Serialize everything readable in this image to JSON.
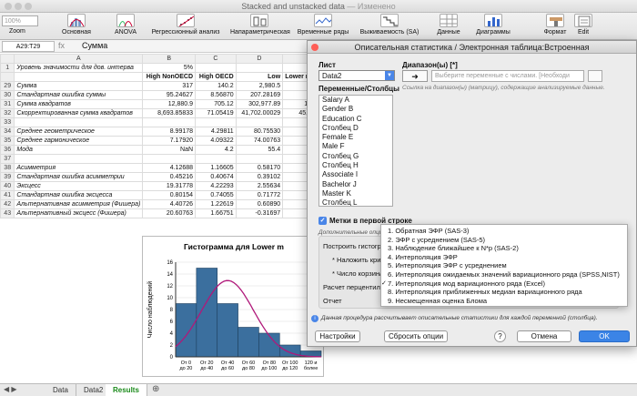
{
  "window": {
    "title": "Stacked and unstacked data",
    "status": "— Изменено"
  },
  "toolbar": {
    "zoom": "100%",
    "zoom_label": "Zoom",
    "buttons": [
      {
        "label": "Основная",
        "icon": "histogram-icon"
      },
      {
        "label": "ANOVA",
        "icon": "anova-icon"
      },
      {
        "label": "Регрессионный анализ",
        "icon": "regression-icon"
      },
      {
        "label": "Напараметрическая",
        "icon": "nonparametric-icon"
      },
      {
        "label": "Временные ряды",
        "icon": "time-series-icon"
      },
      {
        "label": "Выживаемость (SA)",
        "icon": "survival-icon"
      },
      {
        "label": "Данные",
        "icon": "data-icon"
      },
      {
        "label": "Диаграммы",
        "icon": "charts-icon"
      },
      {
        "label": "Формат",
        "icon": "format-icon"
      },
      {
        "label": "Edit",
        "icon": "edit-icon"
      }
    ]
  },
  "formula_bar": {
    "cell_ref": "A29:T29",
    "fx": "fx",
    "value": "Сумма"
  },
  "sheet": {
    "columns": [
      "",
      "A",
      "B",
      "C",
      "D",
      ""
    ],
    "rows": [
      {
        "n": "1",
        "a": "Уровень значимости для дов. интерва",
        "b": "5%",
        "c": "",
        "d": "",
        "e": ""
      },
      {
        "n": "",
        "a": "",
        "b": "High NonOECD",
        "c": "High OECD",
        "d": "Low",
        "e": "Lower m"
      },
      {
        "n": "29",
        "a": "Сумма",
        "b": "317",
        "c": "140.2",
        "d": "2,980.5",
        "e": ""
      },
      {
        "n": "30",
        "a": "Стандартная ошибка суммы",
        "b": "95.24627",
        "c": "8.56870",
        "d": "207.28169",
        "e": "2"
      },
      {
        "n": "31",
        "a": "Сумма квадратов",
        "b": "12,880.9",
        "c": "705.12",
        "d": "302,977.89",
        "e": "10"
      },
      {
        "n": "32",
        "a": "Скорректированная сумма квадратов",
        "b": "8,693.85833",
        "c": "71.05419",
        "d": "41,702.00029",
        "e": "45,9"
      },
      {
        "n": "33",
        "a": "",
        "b": "",
        "c": "",
        "d": "",
        "e": ""
      },
      {
        "n": "34",
        "a": "Среднее геометрическое",
        "b": "8.99178",
        "c": "4.29811",
        "d": "80.75530",
        "e": ""
      },
      {
        "n": "35",
        "a": "Среднее гармоническое",
        "b": "7.17920",
        "c": "4.09322",
        "d": "74.00763",
        "e": ""
      },
      {
        "n": "36",
        "a": "Мода",
        "b": "NaN",
        "c": "4.2",
        "d": "55.4",
        "e": ""
      },
      {
        "n": "37",
        "a": "",
        "b": "",
        "c": "",
        "d": "",
        "e": ""
      },
      {
        "n": "38",
        "a": "Асимметрия",
        "b": "4.12688",
        "c": "1.16605",
        "d": "0.58170",
        "e": ""
      },
      {
        "n": "39",
        "a": "Стандартная ошибка асимметрии",
        "b": "0.45216",
        "c": "0.40674",
        "d": "0.39102",
        "e": ""
      },
      {
        "n": "40",
        "a": "Эксцесс",
        "b": "19.31778",
        "c": "4.22293",
        "d": "2.55634",
        "e": ""
      },
      {
        "n": "41",
        "a": "Стандартная ошибка эксцесса",
        "b": "0.80154",
        "c": "0.74055",
        "d": "0.71772",
        "e": ""
      },
      {
        "n": "42",
        "a": "Альтернативная асимметрия (Фишера)",
        "b": "4.40726",
        "c": "1.22619",
        "d": "0.60890",
        "e": ""
      },
      {
        "n": "43",
        "a": "Альтернативный эксцесс (Фишера)",
        "b": "20.60763",
        "c": "1.66751",
        "d": "-0.31697",
        "e": ""
      }
    ],
    "tabs": [
      "Data",
      "Data2",
      "Results"
    ],
    "active_tab": "Results"
  },
  "chart_data": {
    "type": "bar",
    "title": "Гистограмма для Lower m",
    "ylabel": "Число наблюдений",
    "categories": [
      "От 0 до 20",
      "От 20 до 40",
      "От 40 до 60",
      "От 60 до 80",
      "От 80 до 100",
      "От 100 до 120",
      "120 и более"
    ],
    "values": [
      9,
      15,
      9,
      5,
      4,
      2,
      1
    ],
    "yticks": [
      0,
      2,
      4,
      6,
      8,
      10,
      12,
      14,
      16
    ],
    "ylim": [
      0,
      16
    ],
    "bar_color": "#3b6f9e",
    "curve_color": "#b0197a",
    "curve_peak": {
      "x": 2.5,
      "y": 12.9
    }
  },
  "dialog": {
    "title": "Описательная статистика / Электронная таблица:Встроенная",
    "sheet_label": "Лист",
    "sheet_value": "Data2",
    "vars_label": "Переменные/Столбцы",
    "variables": [
      "Salary A",
      "Gender B",
      "Education C",
      "Столбец D",
      "Female E",
      "Male F",
      "Столбец G",
      "Столбец H",
      "Associate I",
      "Bachelor J",
      "Master K",
      "Столбец L"
    ],
    "range_label": "Диапазон(ы) [*]",
    "range_placeholder": "Выберите переменные с числами. [Необходи",
    "range_hint": "Ссылка на диапазон(ы) (матрицу), содержащие анализируемые данные.",
    "labels_checkbox": "Метки в первой строке",
    "extra_options": "Дополнительные опци",
    "options": [
      "Построить гистогр",
      "* Наложить криву",
      "* Число корзин/ин",
      "Расчет перцентил",
      "Отчет"
    ],
    "info": "Данная процедура рассчитывает описательные статистики для каждой переменной (столбца).",
    "buttons": {
      "settings": "Настройки",
      "clear": "Сбросить опции",
      "help": "?",
      "cancel": "Отмена",
      "ok": "OK"
    }
  },
  "popup": {
    "items": [
      "1. Обратная ЭФР (SAS-3)",
      "2. ЭФР с усреднением (SAS-5)",
      "3. Наблюдение ближайшее к N*p (SAS-2)",
      "4. Интерполяция ЭФР",
      "5. Интерполяция ЭФР с усреднением",
      "6. Интерполяция ожидаемых значений вариационного ряда (SPSS,NIST)",
      "7. Интерполяция мод вариационного ряда (Excel)",
      "8. Интерполяция приближенных медиан вариационного ряда",
      "9. Несмещенная оценка Блома"
    ],
    "selected_index": 6
  }
}
